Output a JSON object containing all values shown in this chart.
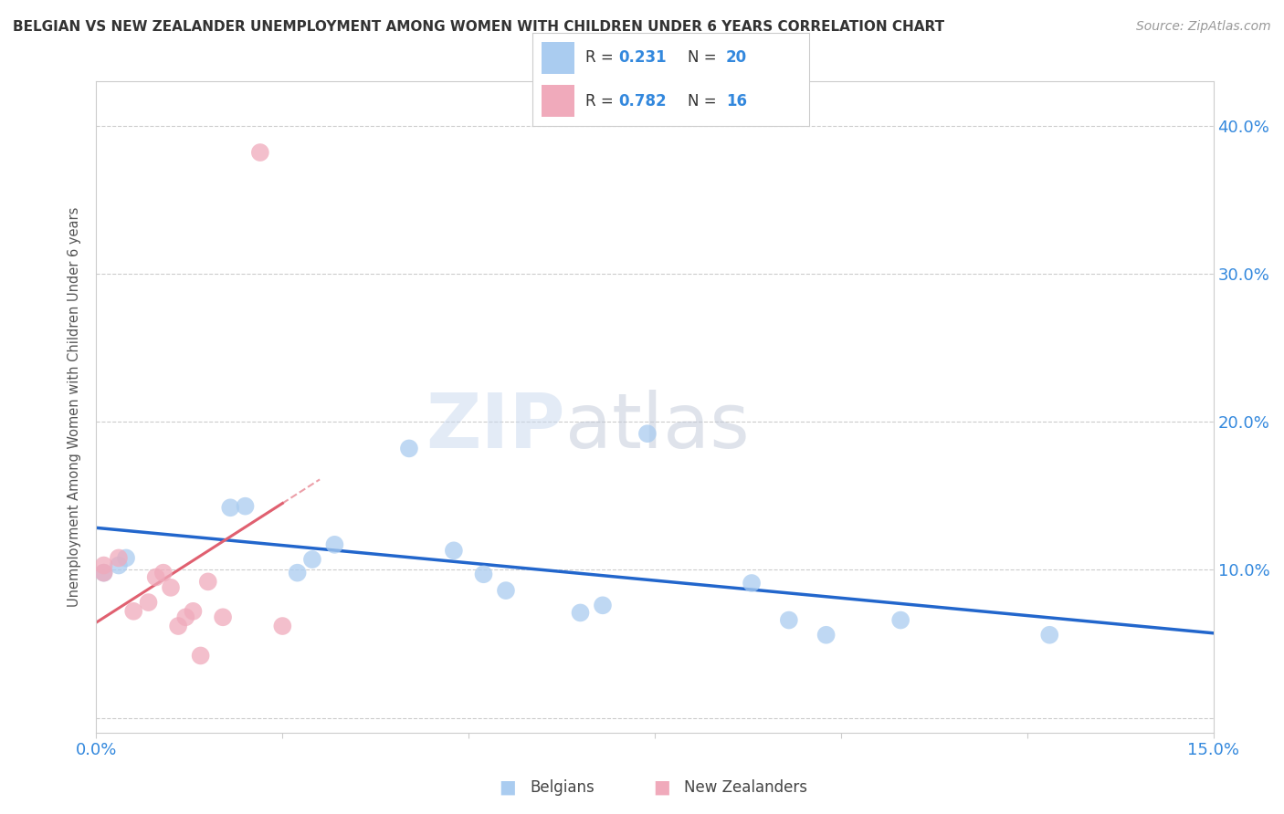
{
  "title": "BELGIAN VS NEW ZEALANDER UNEMPLOYMENT AMONG WOMEN WITH CHILDREN UNDER 6 YEARS CORRELATION CHART",
  "source": "Source: ZipAtlas.com",
  "ylabel": "Unemployment Among Women with Children Under 6 years",
  "xlim": [
    0.0,
    0.15
  ],
  "ylim": [
    -0.01,
    0.43
  ],
  "yticks": [
    0.0,
    0.1,
    0.2,
    0.3,
    0.4
  ],
  "ytick_labels": [
    "",
    "10.0%",
    "20.0%",
    "30.0%",
    "40.0%"
  ],
  "r_belgian": 0.231,
  "n_belgian": 20,
  "r_nz": 0.782,
  "n_nz": 16,
  "belgian_color": "#aaccf0",
  "nz_color": "#f0aabb",
  "trend_belgian_color": "#2266cc",
  "trend_nz_color": "#e06070",
  "belgian_scatter_x": [
    0.001,
    0.003,
    0.004,
    0.018,
    0.02,
    0.027,
    0.029,
    0.032,
    0.042,
    0.048,
    0.052,
    0.055,
    0.065,
    0.068,
    0.074,
    0.088,
    0.093,
    0.098,
    0.108,
    0.128
  ],
  "belgian_scatter_y": [
    0.098,
    0.103,
    0.108,
    0.142,
    0.143,
    0.098,
    0.107,
    0.117,
    0.182,
    0.113,
    0.097,
    0.086,
    0.071,
    0.076,
    0.192,
    0.091,
    0.066,
    0.056,
    0.066,
    0.056
  ],
  "nz_scatter_x": [
    0.001,
    0.001,
    0.003,
    0.005,
    0.007,
    0.008,
    0.009,
    0.01,
    0.011,
    0.012,
    0.013,
    0.014,
    0.015,
    0.017,
    0.022,
    0.025
  ],
  "nz_scatter_y": [
    0.098,
    0.103,
    0.108,
    0.072,
    0.078,
    0.095,
    0.098,
    0.088,
    0.062,
    0.068,
    0.072,
    0.042,
    0.092,
    0.068,
    0.382,
    0.062
  ],
  "watermark_zip": "ZIP",
  "watermark_atlas": "atlas",
  "background_color": "#ffffff",
  "grid_color": "#cccccc",
  "title_color": "#333333",
  "source_color": "#999999",
  "tick_color": "#3388dd",
  "ylabel_color": "#555555"
}
